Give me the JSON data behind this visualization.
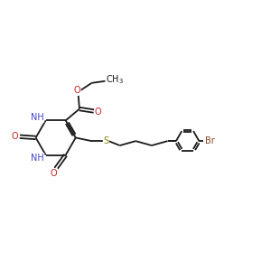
{
  "bg_color": "#ffffff",
  "bond_color": "#1a1a1a",
  "bond_lw": 1.3,
  "N_color": "#4444cc",
  "O_color": "#cc2222",
  "S_color": "#888800",
  "Br_color": "#884422",
  "font_size": 7.0,
  "xlim": [
    0,
    12
  ],
  "ylim": [
    1,
    10
  ]
}
